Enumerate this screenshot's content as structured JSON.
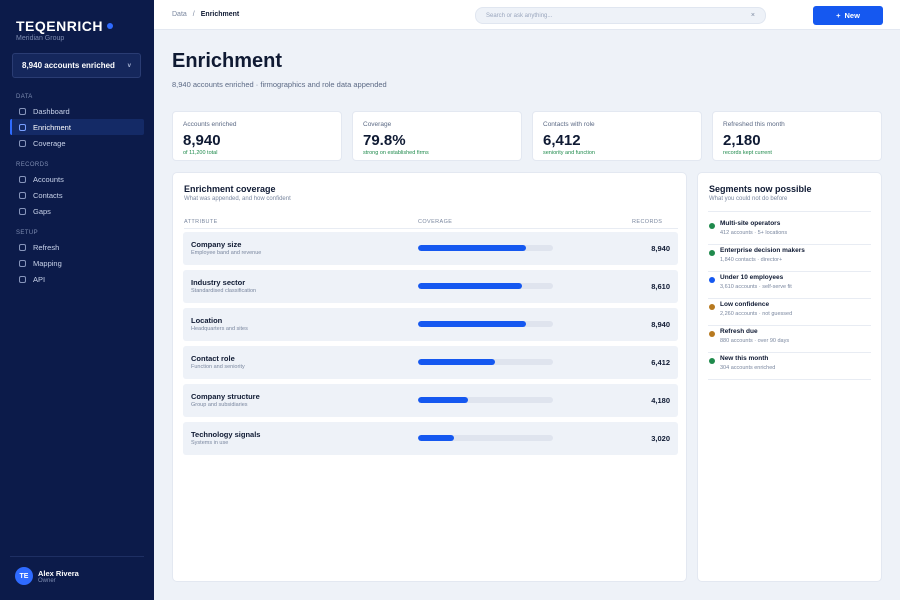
{
  "brand": {
    "name": "TEQENRICH",
    "sub": "Meridian Group"
  },
  "account_select": {
    "label": "8,940 accounts enriched",
    "chevron": "v"
  },
  "nav": {
    "sections": [
      {
        "title": "DATA",
        "items": [
          "Dashboard",
          "Enrichment",
          "Coverage"
        ]
      },
      {
        "title": "RECORDS",
        "items": [
          "Accounts",
          "Contacts",
          "Gaps"
        ]
      },
      {
        "title": "SETUP",
        "items": [
          "Refresh",
          "Mapping",
          "API"
        ]
      }
    ],
    "active": "Enrichment"
  },
  "user": {
    "initials": "TE",
    "name": "Alex Rivera",
    "role": "Owner"
  },
  "topbar": {
    "breadcrumb": [
      "Data",
      "Enrichment"
    ],
    "separator": "/",
    "search_placeholder": "Search or ask anything...",
    "search_clear": "×",
    "new_button": "New",
    "new_icon": "+"
  },
  "page": {
    "title": "Enrichment",
    "subtitle": "8,940 accounts enriched · firmographics and role data appended"
  },
  "stats": [
    {
      "label": "Accounts enriched",
      "value": "8,940",
      "note": "of 11,200 total"
    },
    {
      "label": "Coverage",
      "value": "79.8%",
      "note": "strong on established firms"
    },
    {
      "label": "Contacts with role",
      "value": "6,412",
      "note": "seniority and function"
    },
    {
      "label": "Refreshed this month",
      "value": "2,180",
      "note": "records kept current"
    }
  ],
  "coverage": {
    "title": "Enrichment coverage",
    "subtitle": "What was appended, and how confident",
    "columns": {
      "attribute": "ATTRIBUTE",
      "coverage": "COVERAGE",
      "records": "RECORDS"
    },
    "accent": "#1558f0",
    "rows": [
      {
        "name": "Company size",
        "desc": "Employee band and revenue",
        "pct": 80,
        "records": "8,940"
      },
      {
        "name": "Industry sector",
        "desc": "Standardised classification",
        "pct": 77,
        "records": "8,610"
      },
      {
        "name": "Location",
        "desc": "Headquarters and sites",
        "pct": 80,
        "records": "8,940"
      },
      {
        "name": "Contact role",
        "desc": "Function and seniority",
        "pct": 57,
        "records": "6,412"
      },
      {
        "name": "Company structure",
        "desc": "Group and subsidiaries",
        "pct": 37,
        "records": "4,180"
      },
      {
        "name": "Technology signals",
        "desc": "Systems in use",
        "pct": 27,
        "records": "3,020"
      }
    ]
  },
  "segments": {
    "title": "Segments now possible",
    "subtitle": "What you could not do before",
    "items": [
      {
        "name": "Multi-site operators",
        "meta": "412 accounts · 5+ locations",
        "color": "#1f8a4c"
      },
      {
        "name": "Enterprise decision makers",
        "meta": "1,840 contacts · director+",
        "color": "#1f8a4c"
      },
      {
        "name": "Under 10 employees",
        "meta": "3,610 accounts · self-serve fit",
        "color": "#1558f0"
      },
      {
        "name": "Low confidence",
        "meta": "2,260 accounts · not guessed",
        "color": "#b7791f"
      },
      {
        "name": "Refresh due",
        "meta": "880 accounts · over 90 days",
        "color": "#b7791f"
      },
      {
        "name": "New this month",
        "meta": "304 accounts enriched",
        "color": "#1f8a4c"
      }
    ]
  }
}
